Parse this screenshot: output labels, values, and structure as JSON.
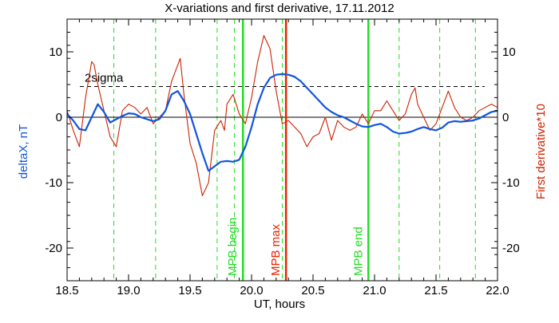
{
  "chart_data": {
    "type": "line",
    "title": "X-variations and first derivative, 17.11.2012",
    "xlabel": "UT, hours",
    "ylabel_left": "deltaX, nT",
    "ylabel_right": "First derivative*10",
    "xlim": [
      18.5,
      22.0
    ],
    "ylim": [
      -25,
      15
    ],
    "x_ticks": [
      18.5,
      19.0,
      19.5,
      20.0,
      20.5,
      21.0,
      21.5,
      22.0
    ],
    "x_tick_labels": [
      "18.5",
      "19.0",
      "19.5",
      "20.0",
      "20.5",
      "21.0",
      "21.5",
      "22.0"
    ],
    "y_ticks": [
      10,
      0,
      -10,
      -20
    ],
    "y_tick_labels": [
      "10",
      "0",
      "-10",
      "-20"
    ],
    "grid": false,
    "threshold": {
      "label": "2sigma",
      "y": 4.7
    },
    "zero_line": 0,
    "vlines_dashed": [
      18.88,
      19.22,
      19.72,
      19.86,
      20.25,
      21.2,
      21.53,
      21.82
    ],
    "markers": [
      {
        "label": "MPB begin",
        "x": 19.93,
        "color": "#22dd22"
      },
      {
        "label": "MPB max",
        "x": 20.28,
        "color": "#ee2200"
      },
      {
        "label": "MPB end",
        "x": 20.95,
        "color": "#22dd22"
      }
    ],
    "series": [
      {
        "color": "#1155dd",
        "x": [
          18.5,
          18.55,
          18.6,
          18.65,
          18.7,
          18.75,
          18.8,
          18.85,
          18.9,
          18.95,
          19.0,
          19.05,
          19.1,
          19.15,
          19.2,
          19.25,
          19.3,
          19.35,
          19.4,
          19.45,
          19.5,
          19.55,
          19.6,
          19.65,
          19.7,
          19.75,
          19.8,
          19.85,
          19.9,
          19.95,
          20.0,
          20.05,
          20.1,
          20.15,
          20.2,
          20.25,
          20.3,
          20.35,
          20.4,
          20.45,
          20.5,
          20.55,
          20.6,
          20.65,
          20.7,
          20.75,
          20.8,
          20.85,
          20.9,
          20.95,
          21.0,
          21.05,
          21.1,
          21.15,
          21.2,
          21.25,
          21.3,
          21.35,
          21.4,
          21.45,
          21.5,
          21.55,
          21.6,
          21.65,
          21.7,
          21.75,
          21.8,
          21.85,
          21.9,
          21.95,
          22.0
        ],
        "values": [
          0.5,
          -0.5,
          -1.8,
          -2.0,
          0.0,
          2.0,
          0.8,
          -0.8,
          -0.3,
          0.2,
          0.6,
          0.5,
          0.0,
          -0.3,
          -0.6,
          -0.3,
          1.0,
          3.5,
          4.0,
          2.5,
          0.5,
          -2.5,
          -5.5,
          -8.2,
          -7.5,
          -6.8,
          -6.7,
          -6.8,
          -6.5,
          -4.5,
          -1.5,
          2.0,
          4.5,
          6.0,
          6.5,
          6.6,
          6.5,
          6.2,
          5.5,
          4.5,
          3.5,
          2.5,
          1.5,
          0.8,
          0.3,
          0.0,
          -0.5,
          -1.0,
          -1.4,
          -1.5,
          -1.2,
          -1.0,
          -1.5,
          -2.2,
          -2.5,
          -2.4,
          -2.2,
          -1.8,
          -1.5,
          -1.8,
          -2.0,
          -1.6,
          -0.8,
          -0.6,
          -0.7,
          -0.6,
          -0.5,
          -0.2,
          0.3,
          0.8,
          1.0
        ]
      },
      {
        "color": "#cc2200",
        "x": [
          18.5,
          18.55,
          18.6,
          18.65,
          18.7,
          18.72,
          18.75,
          18.8,
          18.85,
          18.9,
          18.95,
          19.0,
          19.05,
          19.1,
          19.15,
          19.2,
          19.25,
          19.3,
          19.35,
          19.4,
          19.42,
          19.45,
          19.5,
          19.55,
          19.6,
          19.65,
          19.7,
          19.75,
          19.78,
          19.8,
          19.85,
          19.9,
          19.95,
          20.0,
          20.05,
          20.1,
          20.15,
          20.2,
          20.25,
          20.3,
          20.35,
          20.4,
          20.45,
          20.5,
          20.55,
          20.6,
          20.65,
          20.7,
          20.75,
          20.8,
          20.85,
          20.9,
          20.95,
          21.0,
          21.05,
          21.1,
          21.15,
          21.2,
          21.25,
          21.3,
          21.33,
          21.35,
          21.4,
          21.45,
          21.5,
          21.55,
          21.6,
          21.65,
          21.7,
          21.75,
          21.8,
          21.85,
          21.9,
          21.95,
          22.0
        ],
        "values": [
          1.0,
          -2.0,
          -4.5,
          3.0,
          8.5,
          8.0,
          5.0,
          1.0,
          -3.0,
          -4.5,
          1.0,
          2.0,
          1.5,
          0.5,
          1.5,
          -1.0,
          0.0,
          1.0,
          5.5,
          8.0,
          9.0,
          3.5,
          -4.0,
          -7.0,
          -12.0,
          -10.0,
          -2.0,
          -0.5,
          -2.0,
          2.0,
          3.5,
          0.5,
          -1.0,
          3.0,
          8.5,
          12.5,
          10.5,
          4.0,
          -1.0,
          -0.5,
          -1.5,
          -2.5,
          -4.5,
          -3.0,
          -2.5,
          0.0,
          -3.5,
          -0.5,
          -1.5,
          -2.0,
          -1.5,
          0.5,
          -1.0,
          1.0,
          1.0,
          2.5,
          1.0,
          -0.5,
          0.5,
          3.5,
          4.5,
          2.0,
          0.0,
          -2.0,
          -1.0,
          1.5,
          4.0,
          1.5,
          0.0,
          -0.5,
          0.0,
          1.0,
          1.5,
          2.0,
          1.5
        ]
      }
    ]
  }
}
